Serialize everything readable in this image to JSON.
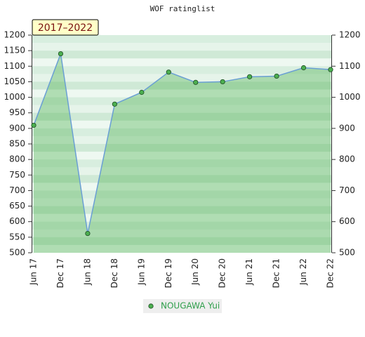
{
  "chart_data": {
    "type": "area-line",
    "title": "WOF ratinglist",
    "subtitle": "2017–2022",
    "categories": [
      "Jun 17",
      "Dec 17",
      "Jun 18",
      "Dec 18",
      "Jun 19",
      "Dec 19",
      "Jun 20",
      "Dec 20",
      "Jun 21",
      "Dec 21",
      "Jun 22",
      "Dec 22"
    ],
    "series": [
      {
        "name": "NOUGAWA Yui",
        "color": "#4caf50",
        "line_color": "#6a9fd4",
        "values": [
          910,
          1140,
          562,
          978,
          1016,
          1081,
          1048,
          1050,
          1066,
          1068,
          1095,
          1089
        ]
      }
    ],
    "ylim": [
      500,
      1200
    ],
    "yticks": [
      500,
      550,
      600,
      650,
      700,
      750,
      800,
      850,
      900,
      950,
      1000,
      1050,
      1100,
      1150,
      1200
    ],
    "y2lim": [
      500,
      1200
    ],
    "y2ticks": [
      500,
      600,
      700,
      800,
      900,
      1000,
      1100,
      1200
    ]
  }
}
